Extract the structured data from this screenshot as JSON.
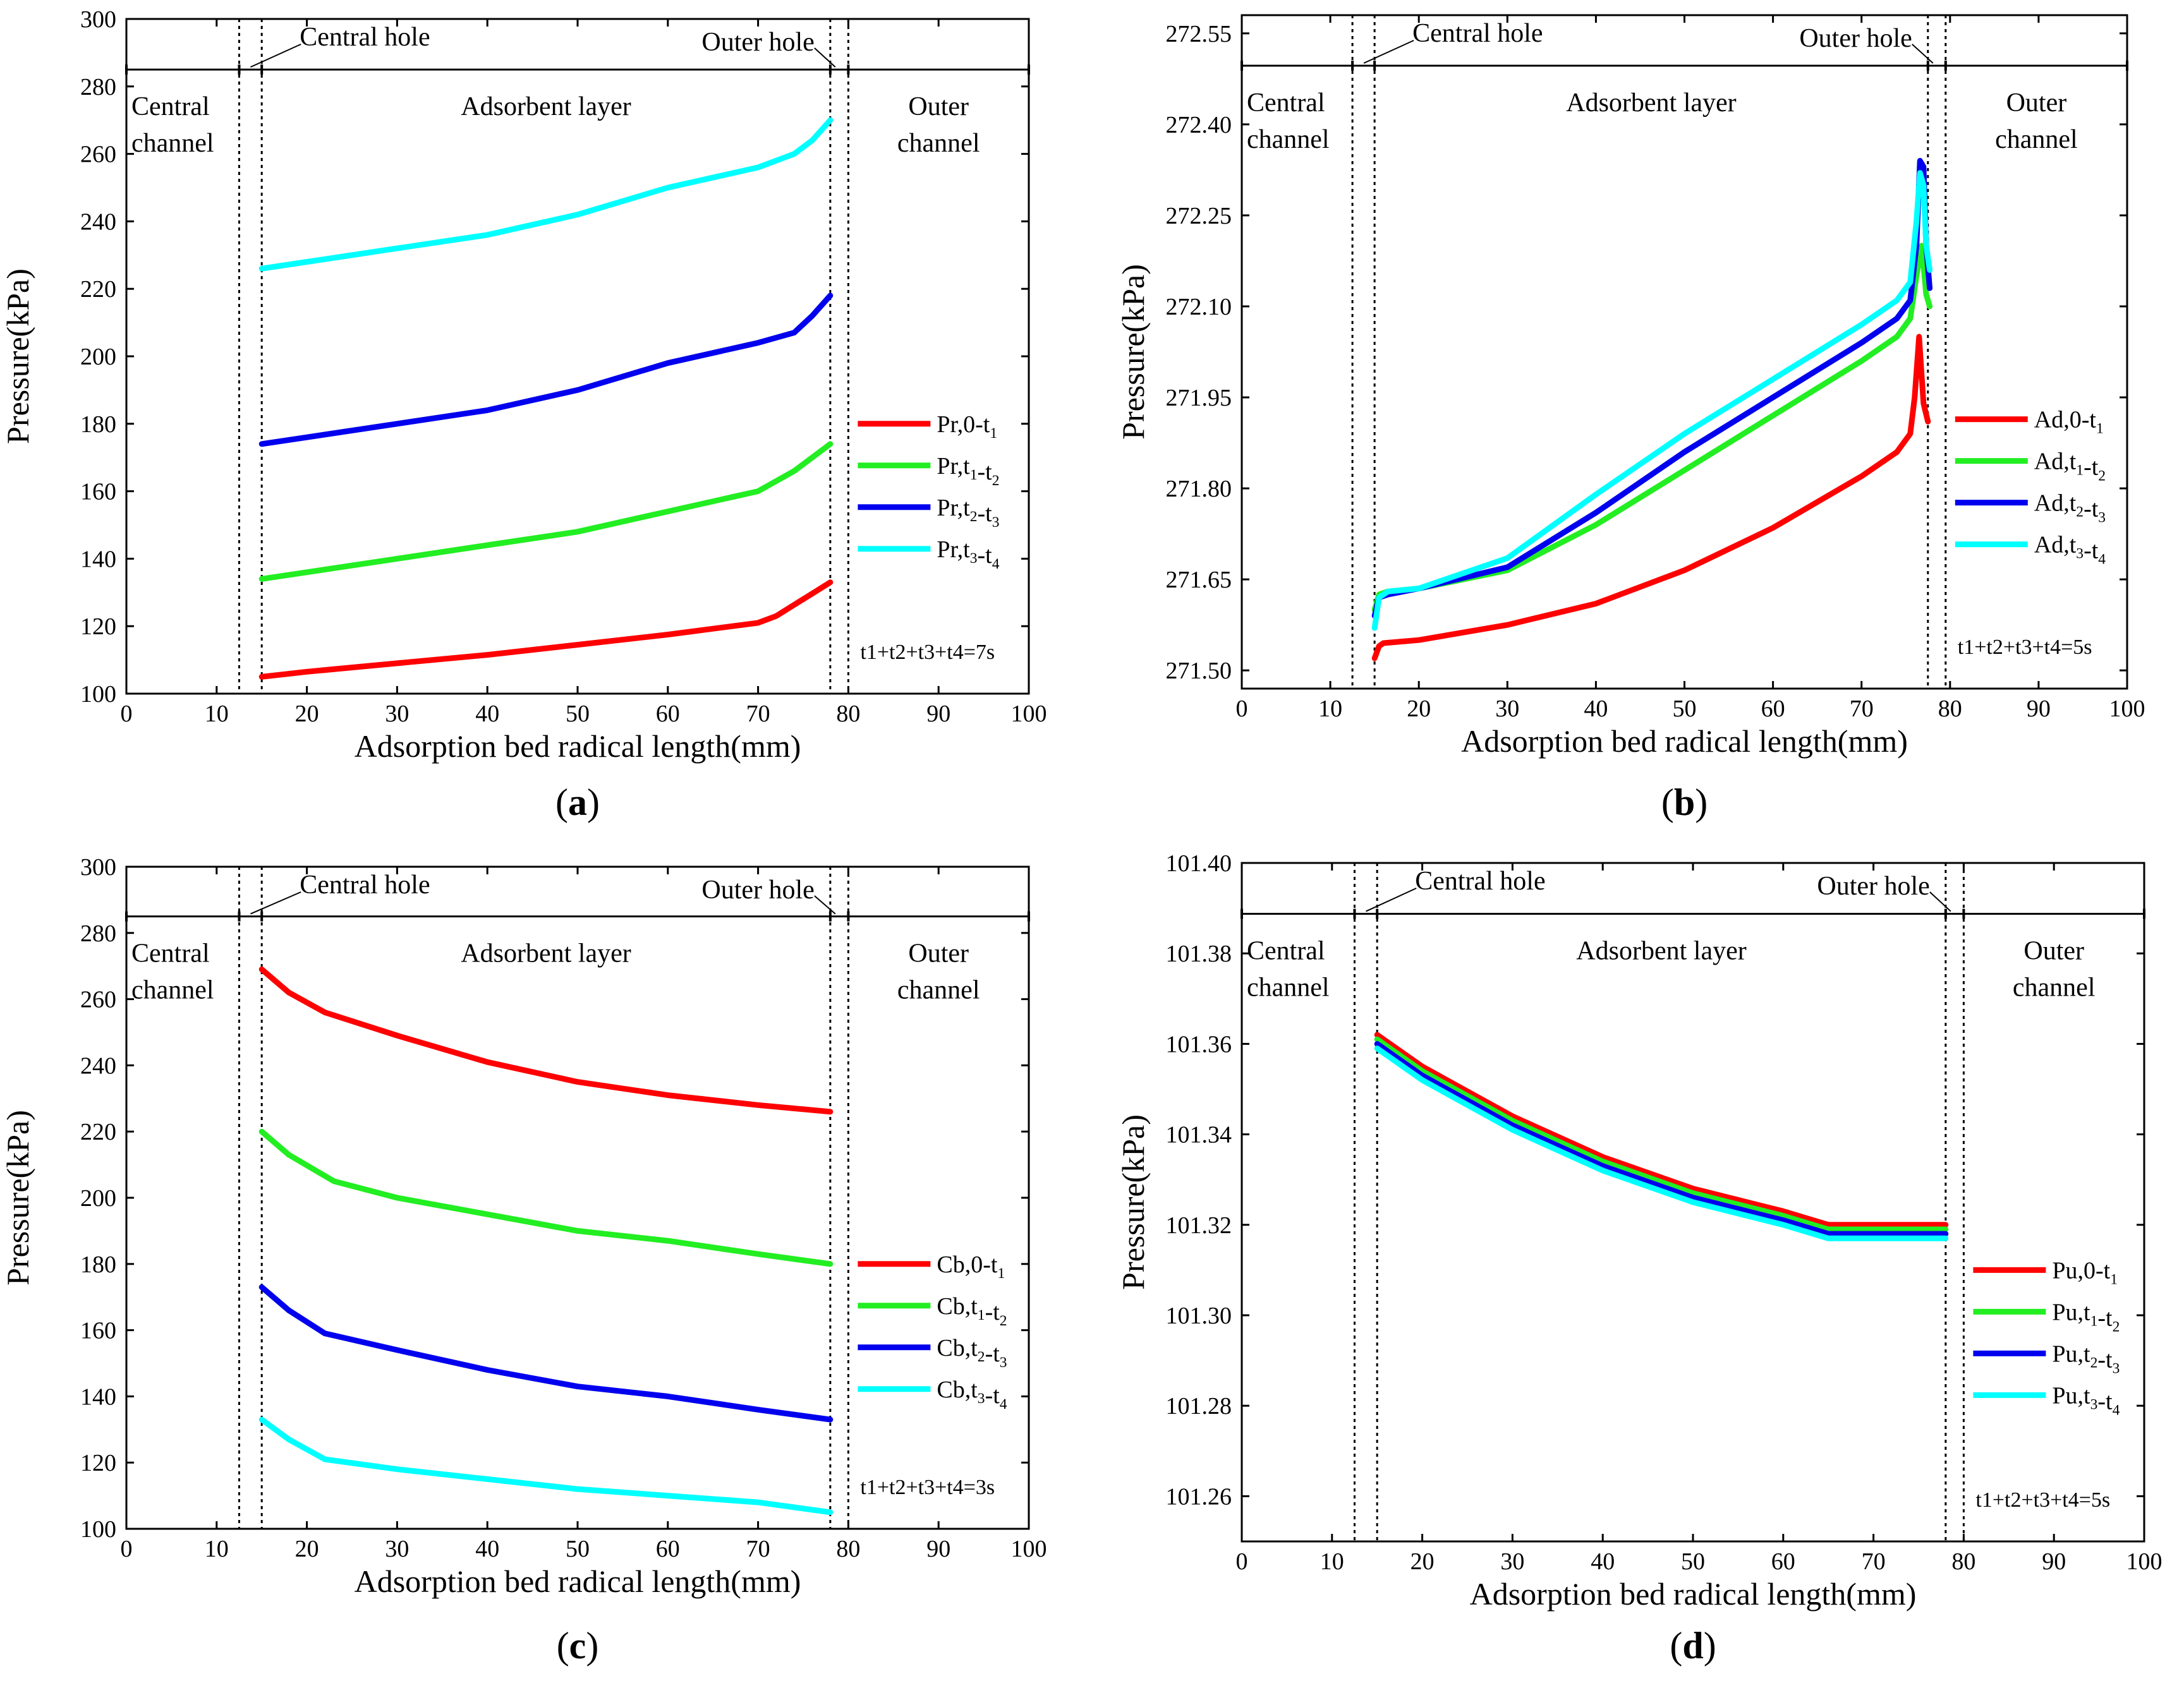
{
  "chart_data": [
    {
      "id": "a",
      "type": "line",
      "panel_label": "a",
      "xlabel": "Adsorption bed radical length(mm)",
      "ylabel": "Pressure(kPa)",
      "xlim": [
        0,
        100
      ],
      "ylim": [
        100,
        300
      ],
      "xticks": [
        0,
        10,
        20,
        30,
        40,
        50,
        60,
        70,
        80,
        90,
        100
      ],
      "yticks": [
        100,
        120,
        140,
        160,
        180,
        200,
        220,
        240,
        260,
        280,
        300
      ],
      "tick_decimals": 0,
      "boundaries": [
        12.5,
        15,
        78,
        80
      ],
      "region_labels": {
        "central_channel": [
          "Central",
          "channel"
        ],
        "central_hole": "Central hole",
        "adsorbent_layer": "Adsorbent layer",
        "outer_hole": "Outer hole",
        "outer_channel": [
          "Outer",
          "channel"
        ]
      },
      "time_note": "t1+t2+t3+t4=7s",
      "legend_position": "right",
      "series": [
        {
          "name": "Pr,0-t1",
          "color": "#ff0000",
          "x": [
            15,
            20,
            30,
            40,
            50,
            60,
            70,
            72,
            75,
            78
          ],
          "y": [
            105,
            106.5,
            109,
            111.5,
            114.5,
            117.5,
            121,
            123,
            128,
            133
          ]
        },
        {
          "name": "Pr,t1-t2",
          "color": "#22ee22",
          "x": [
            15,
            20,
            30,
            40,
            50,
            60,
            70,
            74,
            78
          ],
          "y": [
            134,
            136,
            140,
            144,
            148,
            154,
            160,
            166,
            174
          ]
        },
        {
          "name": "Pr,t2-t3",
          "color": "#0000ee",
          "x": [
            15,
            20,
            30,
            40,
            50,
            60,
            70,
            74,
            76,
            78
          ],
          "y": [
            174,
            176,
            180,
            184,
            190,
            198,
            204,
            207,
            212,
            218
          ]
        },
        {
          "name": "Pr,t3-t4",
          "color": "#00ffff",
          "x": [
            15,
            20,
            30,
            40,
            50,
            60,
            70,
            72,
            74,
            76,
            78
          ],
          "y": [
            226,
            228,
            232,
            236,
            242,
            250,
            256,
            258,
            260,
            264,
            270
          ]
        }
      ]
    },
    {
      "id": "b",
      "type": "line",
      "panel_label": "b",
      "xlabel": "Adsorption bed radical length(mm)",
      "ylabel": "Pressure(kPa)",
      "xlim": [
        0,
        100
      ],
      "ylim": [
        271.47,
        272.58
      ],
      "xticks": [
        0,
        10,
        20,
        30,
        40,
        50,
        60,
        70,
        80,
        90,
        100
      ],
      "yticks": [
        271.5,
        271.65,
        271.8,
        271.95,
        272.1,
        272.25,
        272.4,
        272.55
      ],
      "tick_decimals": 2,
      "boundaries": [
        12.5,
        15,
        77.5,
        79.5
      ],
      "region_labels": {
        "central_channel": [
          "Central",
          "channel"
        ],
        "central_hole": "Central hole",
        "adsorbent_layer": "Adsorbent layer",
        "outer_hole": "Outer hole",
        "outer_channel": [
          "Outer",
          "channel"
        ]
      },
      "time_note": "t1+t2+t3+t4=5s",
      "legend_position": "right",
      "series": [
        {
          "name": "Ad,0-t1",
          "color": "#ff0000",
          "x": [
            15,
            15.5,
            16,
            20,
            30,
            40,
            50,
            60,
            70,
            74,
            75.5,
            76,
            76.5,
            77,
            77.5
          ],
          "y": [
            271.52,
            271.54,
            271.545,
            271.55,
            271.575,
            271.61,
            271.665,
            271.735,
            271.82,
            271.86,
            271.89,
            271.95,
            272.05,
            271.94,
            271.91
          ]
        },
        {
          "name": "Ad,t1-t2",
          "color": "#22ee22",
          "x": [
            15,
            15.5,
            16.5,
            20,
            30,
            40,
            50,
            60,
            70,
            74,
            75.5,
            76.2,
            76.8,
            77.3,
            77.7
          ],
          "y": [
            271.6,
            271.625,
            271.63,
            271.635,
            271.665,
            271.74,
            271.83,
            271.92,
            272.01,
            272.05,
            272.08,
            272.15,
            272.2,
            272.12,
            272.1
          ]
        },
        {
          "name": "Ad,t2-t3",
          "color": "#0000ee",
          "x": [
            15,
            15.5,
            16.5,
            20,
            30,
            40,
            50,
            60,
            70,
            74,
            75.5,
            76.2,
            76.6,
            77,
            77.3,
            77.7
          ],
          "y": [
            271.59,
            271.62,
            271.625,
            271.635,
            271.67,
            271.76,
            271.86,
            271.95,
            272.04,
            272.08,
            272.11,
            272.2,
            272.34,
            272.33,
            272.2,
            272.13
          ]
        },
        {
          "name": "Ad,t3-t4",
          "color": "#00ffff",
          "x": [
            15,
            15.5,
            16.5,
            20,
            30,
            40,
            50,
            60,
            70,
            74,
            75.5,
            76.2,
            76.6,
            77,
            77.3,
            77.7
          ],
          "y": [
            271.57,
            271.62,
            271.63,
            271.635,
            271.685,
            271.79,
            271.89,
            271.98,
            272.07,
            272.11,
            272.14,
            272.24,
            272.32,
            272.3,
            272.2,
            272.16
          ]
        }
      ]
    },
    {
      "id": "c",
      "type": "line",
      "panel_label": "c",
      "xlabel": "Adsorption bed radical length(mm)",
      "ylabel": "Pressure(kPa)",
      "xlim": [
        0,
        100
      ],
      "ylim": [
        100,
        300
      ],
      "xticks": [
        0,
        10,
        20,
        30,
        40,
        50,
        60,
        70,
        80,
        90,
        100
      ],
      "yticks": [
        100,
        120,
        140,
        160,
        180,
        200,
        220,
        240,
        260,
        280,
        300
      ],
      "tick_decimals": 0,
      "boundaries": [
        12.5,
        15,
        78,
        80
      ],
      "region_labels": {
        "central_channel": [
          "Central",
          "channel"
        ],
        "central_hole": "Central hole",
        "adsorbent_layer": "Adsorbent layer",
        "outer_hole": "Outer hole",
        "outer_channel": [
          "Outer",
          "channel"
        ]
      },
      "time_note": "t1+t2+t3+t4=3s",
      "legend_position": "right",
      "series": [
        {
          "name": "Cb,0-t1",
          "color": "#ff0000",
          "x": [
            15,
            18,
            22,
            30,
            40,
            50,
            60,
            70,
            78
          ],
          "y": [
            269,
            262,
            256,
            249,
            241,
            235,
            231,
            228,
            226
          ]
        },
        {
          "name": "Cb,t1-t2",
          "color": "#22ee22",
          "x": [
            15,
            18,
            23,
            30,
            40,
            50,
            60,
            70,
            78
          ],
          "y": [
            220,
            213,
            205,
            200,
            195,
            190,
            187,
            183,
            180
          ]
        },
        {
          "name": "Cb,t2-t3",
          "color": "#0000ee",
          "x": [
            15,
            18,
            22,
            30,
            40,
            50,
            60,
            70,
            78
          ],
          "y": [
            173,
            166,
            159,
            154,
            148,
            143,
            140,
            136,
            133
          ]
        },
        {
          "name": "Cb,t3-t4",
          "color": "#00ffff",
          "x": [
            15,
            18,
            22,
            30,
            40,
            50,
            60,
            70,
            78
          ],
          "y": [
            133,
            127,
            121,
            118,
            115,
            112,
            110,
            108,
            105
          ]
        }
      ]
    },
    {
      "id": "d",
      "type": "line",
      "panel_label": "d",
      "xlabel": "Adsorption bed radical length(mm)",
      "ylabel": "Pressure(kPa)",
      "xlim": [
        0,
        100
      ],
      "ylim": [
        101.25,
        101.4
      ],
      "xticks": [
        0,
        10,
        20,
        30,
        40,
        50,
        60,
        70,
        80,
        90,
        100
      ],
      "yticks": [
        101.26,
        101.28,
        101.3,
        101.32,
        101.34,
        101.36,
        101.38,
        101.4
      ],
      "tick_decimals": 2,
      "boundaries": [
        12.5,
        15,
        78,
        80
      ],
      "region_labels": {
        "central_channel": [
          "Central",
          "channel"
        ],
        "central_hole": "Central hole",
        "adsorbent_layer": "Adsorbent layer",
        "outer_hole": "Outer hole",
        "outer_channel": [
          "Outer",
          "channel"
        ]
      },
      "time_note": "t1+t2+t3+t4=5s",
      "legend_position": "right",
      "series": [
        {
          "name": "Pu,0-t1",
          "color": "#ff0000",
          "x": [
            15,
            20,
            30,
            40,
            50,
            60,
            65,
            70,
            78
          ],
          "y": [
            101.362,
            101.355,
            101.344,
            101.335,
            101.328,
            101.323,
            101.32,
            101.32,
            101.32
          ]
        },
        {
          "name": "Pu,t1-t2",
          "color": "#22ee22",
          "x": [
            15,
            20,
            30,
            40,
            50,
            60,
            65,
            70,
            78
          ],
          "y": [
            101.361,
            101.354,
            101.343,
            101.334,
            101.327,
            101.322,
            101.319,
            101.319,
            101.319
          ]
        },
        {
          "name": "Pu,t2-t3",
          "color": "#0000ee",
          "x": [
            15,
            20,
            30,
            40,
            50,
            60,
            65,
            70,
            78
          ],
          "y": [
            101.36,
            101.353,
            101.342,
            101.333,
            101.326,
            101.321,
            101.318,
            101.318,
            101.318
          ]
        },
        {
          "name": "Pu,t3-t4",
          "color": "#00ffff",
          "x": [
            15,
            20,
            30,
            40,
            50,
            60,
            65,
            70,
            78
          ],
          "y": [
            101.359,
            101.352,
            101.341,
            101.332,
            101.325,
            101.32,
            101.317,
            101.317,
            101.317
          ]
        }
      ]
    }
  ]
}
